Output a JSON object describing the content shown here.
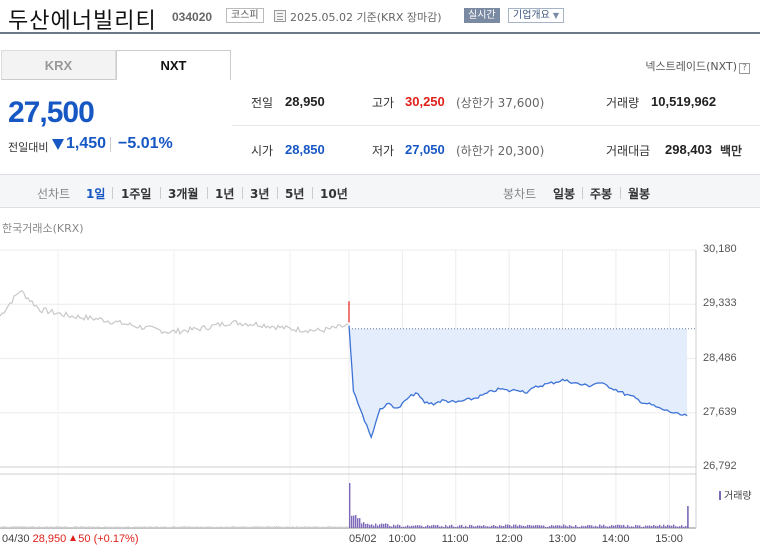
{
  "header": {
    "stock_name": "두산에너빌리티",
    "stock_code": "034020",
    "market": "코스피",
    "as_of": "2025.05.02  기준(KRX 장마감)",
    "realtime_label": "실시간",
    "overview_label": "기업개요"
  },
  "tabs": [
    {
      "label": "KRX",
      "active": false
    },
    {
      "label": "NXT",
      "active": true
    }
  ],
  "nextrade_link": "넥스트레이드(NXT)",
  "nextrade_help": "?",
  "price": {
    "current": "27,500",
    "prev_label": "전일대비",
    "change": "1,450",
    "change_pct": "−5.01%",
    "direction": "down"
  },
  "info": {
    "prev_close_label": "전일",
    "prev_close": "28,950",
    "high_label": "고가",
    "high": "30,250",
    "upper_limit": "(상한가 37,600)",
    "volume_label": "거래량",
    "volume": "10,519,962",
    "open_label": "시가",
    "open": "28,850",
    "low_label": "저가",
    "low": "27,050",
    "lower_limit": "(하한가 20,300)",
    "amount_label": "거래대금",
    "amount": "298,403",
    "amount_unit": "백만"
  },
  "period_bar": {
    "line_title": "선차트",
    "line_items": [
      "1일",
      "1주일",
      "3개월",
      "1년",
      "3년",
      "5년",
      "10년"
    ],
    "active_item": "1일",
    "candle_title": "봉차트",
    "candle_items": [
      "일봉",
      "주봉",
      "월봉"
    ]
  },
  "exchange_label": "한국거래소(KRX)",
  "chart_data": {
    "type": "line",
    "yticks": [
      "30,180",
      "29,333",
      "28,486",
      "27,639",
      "26,792"
    ],
    "ylim": [
      26792,
      30180
    ],
    "xticks": [
      "05/02",
      "10:00",
      "11:00",
      "12:00",
      "13:00",
      "14:00",
      "15:00"
    ],
    "reference_price": 28950,
    "previous_day": {
      "label": "04/30",
      "close": "28,950",
      "change": "50",
      "change_pct": "(+0.17%)"
    },
    "today": [
      [
        "09:00",
        29000
      ],
      [
        "09:02",
        28600
      ],
      [
        "09:05",
        28000
      ],
      [
        "09:10",
        27800
      ],
      [
        "09:15",
        27600
      ],
      [
        "09:20",
        27450
      ],
      [
        "09:25",
        27250
      ],
      [
        "09:30",
        27500
      ],
      [
        "09:35",
        27700
      ],
      [
        "09:45",
        27780
      ],
      [
        "09:55",
        27700
      ],
      [
        "10:05",
        27850
      ],
      [
        "10:15",
        27950
      ],
      [
        "10:25",
        27800
      ],
      [
        "10:35",
        27780
      ],
      [
        "10:45",
        27830
      ],
      [
        "11:00",
        27800
      ],
      [
        "11:10",
        27830
      ],
      [
        "11:20",
        27860
      ],
      [
        "11:30",
        27910
      ],
      [
        "11:40",
        27970
      ],
      [
        "11:50",
        28010
      ],
      [
        "12:00",
        27980
      ],
      [
        "12:10",
        28000
      ],
      [
        "12:20",
        27960
      ],
      [
        "12:30",
        28040
      ],
      [
        "12:40",
        28080
      ],
      [
        "12:50",
        28110
      ],
      [
        "13:00",
        28150
      ],
      [
        "13:10",
        28120
      ],
      [
        "13:20",
        28080
      ],
      [
        "13:30",
        28060
      ],
      [
        "13:40",
        28110
      ],
      [
        "13:50",
        28060
      ],
      [
        "14:00",
        28000
      ],
      [
        "14:10",
        27930
      ],
      [
        "14:20",
        27880
      ],
      [
        "14:30",
        27800
      ],
      [
        "14:40",
        27760
      ],
      [
        "14:50",
        27700
      ],
      [
        "15:00",
        27660
      ],
      [
        "15:10",
        27610
      ],
      [
        "15:20",
        27590
      ]
    ],
    "volume_label": "거래량",
    "line_color": "#3d73d6",
    "fill_color": "#e4edfb",
    "volume_color": "#7d69b8",
    "prev_line_color": "#c8c8c8"
  }
}
